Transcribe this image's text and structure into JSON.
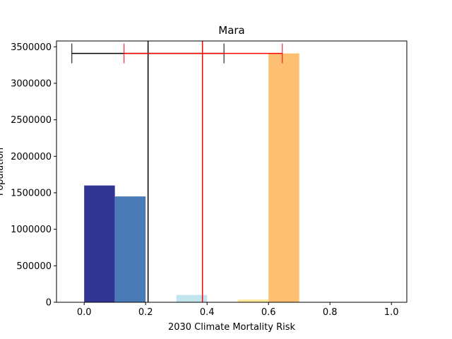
{
  "chart_data": {
    "type": "bar",
    "title": "Mara",
    "xlabel": "2030 Climate Mortality Risk",
    "ylabel": "Population",
    "xlim": [
      -0.09,
      1.05
    ],
    "ylim": [
      0,
      3580000
    ],
    "xticks": [
      "0.0",
      "0.2",
      "0.4",
      "0.6",
      "0.8",
      "1.0"
    ],
    "xtick_values": [
      0.0,
      0.2,
      0.4,
      0.6,
      0.8,
      1.0
    ],
    "yticks": [
      "0",
      "500000",
      "1000000",
      "1500000",
      "2000000",
      "2500000",
      "3000000",
      "3500000"
    ],
    "ytick_values": [
      0,
      500000,
      1000000,
      1500000,
      2000000,
      2500000,
      3000000,
      3500000
    ],
    "bars": [
      {
        "x0": 0.0,
        "x1": 0.1,
        "value": 1600000,
        "color": "#313695"
      },
      {
        "x0": 0.1,
        "x1": 0.2,
        "value": 1450000,
        "color": "#4a7bb7"
      },
      {
        "x0": 0.2,
        "x1": 0.3,
        "value": 0,
        "color": "#98cae1"
      },
      {
        "x0": 0.3,
        "x1": 0.4,
        "value": 100000,
        "color": "#c2e4ef"
      },
      {
        "x0": 0.4,
        "x1": 0.5,
        "value": 0,
        "color": "#eaf6e6"
      },
      {
        "x0": 0.5,
        "x1": 0.6,
        "value": 40000,
        "color": "#fee99d"
      },
      {
        "x0": 0.6,
        "x1": 0.7,
        "value": 3410000,
        "color": "#fdbf71"
      },
      {
        "x0": 0.7,
        "x1": 0.8,
        "value": 0,
        "color": "#f57547"
      },
      {
        "x0": 0.8,
        "x1": 0.9,
        "value": 0,
        "color": "#d22b26"
      },
      {
        "x0": 0.9,
        "x1": 1.0,
        "value": 0,
        "color": "#a50026"
      }
    ],
    "vlines": [
      {
        "x": 0.208,
        "color": "#000000"
      },
      {
        "x": 0.385,
        "color": "#ff0000"
      }
    ],
    "errorbars": [
      {
        "y": 3410000,
        "left": -0.04,
        "right": 0.455,
        "color": "#000000"
      },
      {
        "y": 3410000,
        "left": 0.13,
        "right": 0.645,
        "color": "#ff0000"
      }
    ]
  }
}
